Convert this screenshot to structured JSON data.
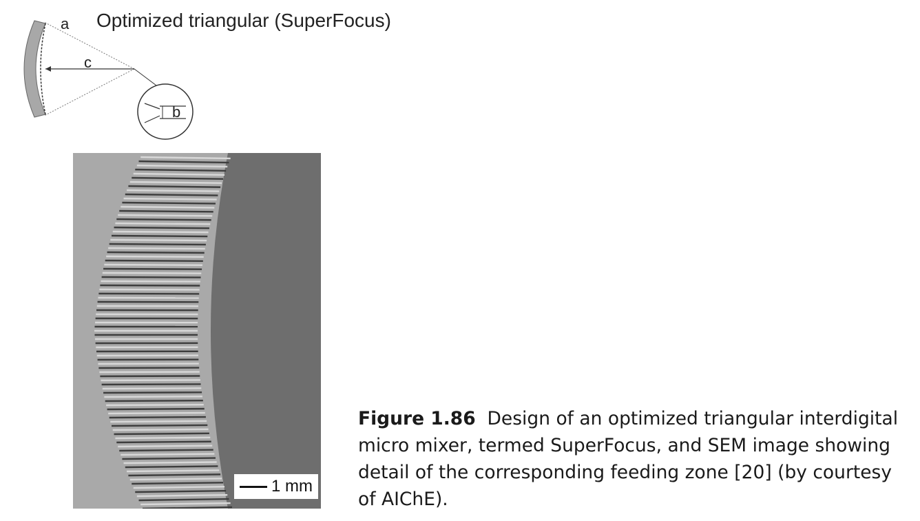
{
  "diagram": {
    "title": "Optimized triangular (SuperFocus)",
    "labels": {
      "a": "a",
      "b": "b",
      "c": "c"
    }
  },
  "sem_image": {
    "scale_bar_label": "1 mm"
  },
  "caption": {
    "figure_label": "Figure 1.86",
    "text": "Design of an optimized triangular interdigital micro mixer, termed SuperFocus, and SEM image showing detail of the corresponding feeding zone [20] (by courtesy of AIChE)."
  }
}
